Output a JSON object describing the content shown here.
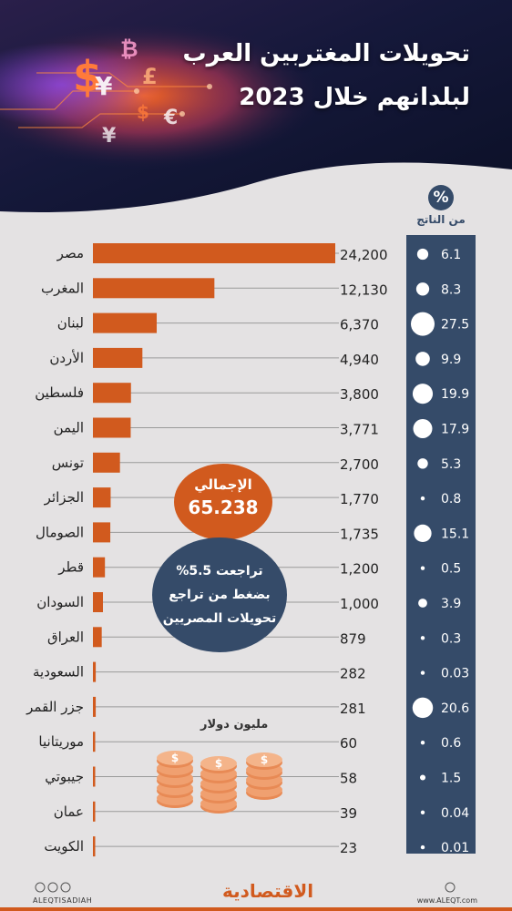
{
  "header": {
    "title_line1": "تحويلات المغتربين العرب",
    "title_line2": "لبلدانهم خلال 2023",
    "currency_symbols": [
      "$",
      "¥",
      "€",
      "₿",
      "£"
    ]
  },
  "pct_column": {
    "symbol": "%",
    "label": "من الناتج"
  },
  "chart_data": {
    "type": "bar",
    "orientation": "horizontal",
    "categories": [
      "مصر",
      "المغرب",
      "لبنان",
      "الأردن",
      "فلسطين",
      "اليمن",
      "تونس",
      "الجزائر",
      "الصومال",
      "قطر",
      "السودان",
      "العراق",
      "السعودية",
      "جزر القمر",
      "موريتانيا",
      "جيبوتي",
      "عمان",
      "الكويت"
    ],
    "values": [
      24200,
      12130,
      6370,
      4940,
      3800,
      3771,
      2700,
      1770,
      1735,
      1200,
      1000,
      879,
      282,
      281,
      60,
      58,
      39,
      23
    ],
    "value_labels": [
      "24,200",
      "12,130",
      "6,370",
      "4,940",
      "3,800",
      "3,771",
      "2,700",
      "1,770",
      "1,735",
      "1,200",
      "1,000",
      "879",
      "282",
      "281",
      "60",
      "58",
      "39",
      "23"
    ],
    "pct_of_gdp": [
      6.1,
      8.3,
      27.5,
      9.9,
      19.9,
      17.9,
      5.3,
      0.8,
      15.1,
      0.5,
      3.9,
      0.3,
      0.03,
      20.6,
      0.6,
      1.5,
      0.04,
      0.01
    ],
    "pct_labels": [
      "6.1",
      "8.3",
      "27.5",
      "9.9",
      "19.9",
      "17.9",
      "5.3",
      "0.8",
      "15.1",
      "0.5",
      "3.9",
      "0.3",
      "0.03",
      "20.6",
      "0.6",
      "1.5",
      "0.04",
      "0.01"
    ],
    "unit": "مليون دولار",
    "bar_color": "#d15a1e",
    "panel_color": "#354b69"
  },
  "total": {
    "label": "الإجمالي",
    "value": "65.238"
  },
  "egypt_note": {
    "line1": "تراجعت 5.5%",
    "line2": "بضغط من تراجع",
    "line3": "تحويلات المصريين"
  },
  "footer": {
    "handle": "ALEQTISADIAH",
    "website": "www.ALEQT.com",
    "brand": "الاقتصادية"
  }
}
